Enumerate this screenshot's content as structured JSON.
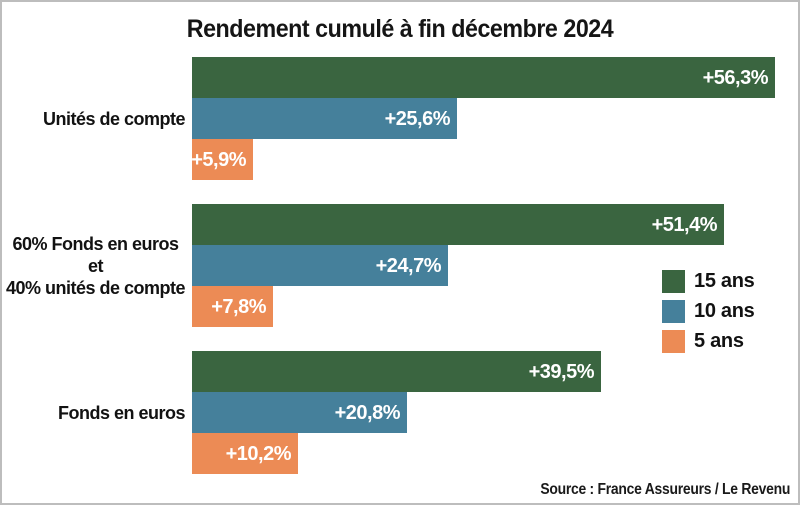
{
  "title": "Rendement cumulé à fin décembre 2024",
  "source": "Source : France Assureurs / Le Revenu",
  "colors": {
    "green_15_ans": "#3A6540",
    "blue_10_ans": "#45809B",
    "orange_5_ans": "#EC8B55",
    "frame_border": "#BDBDBD",
    "text": "#151515",
    "bar_label_text": "#FFFFFF"
  },
  "legend": {
    "items": [
      {
        "label": "15 ans",
        "color": "#3A6540"
      },
      {
        "label": "10 ans",
        "color": "#45809B"
      },
      {
        "label": "5 ans",
        "color": "#EC8B55"
      }
    ]
  },
  "chart_data": {
    "type": "bar",
    "orientation": "horizontal",
    "title": "Rendement cumulé à fin décembre 2024",
    "unit": "%",
    "grid": false,
    "axes_visible": false,
    "xlim": [
      0,
      60
    ],
    "legend_position": "middle-right",
    "categories": [
      "Unités de compte",
      "60% Fonds en euros et 40% unités de compte",
      "Fonds en euros"
    ],
    "category_label_lines": [
      [
        "Unités de compte"
      ],
      [
        "60% Fonds en euros",
        "et",
        "40% unités de compte"
      ],
      [
        "Fonds en euros"
      ]
    ],
    "series": [
      {
        "name": "15 ans",
        "color": "#3A6540",
        "values": [
          56.3,
          51.4,
          39.5
        ]
      },
      {
        "name": "10 ans",
        "color": "#45809B",
        "values": [
          25.6,
          24.7,
          20.8
        ]
      },
      {
        "name": "5 ans",
        "color": "#EC8B55",
        "values": [
          5.9,
          7.8,
          10.2
        ]
      }
    ],
    "data_labels": [
      [
        "+56,3%",
        "+25,6%",
        "+5,9%"
      ],
      [
        "+51,4%",
        "+24,7%",
        "+7,8%"
      ],
      [
        "+39,5%",
        "+20,8%",
        "+10,2%"
      ]
    ],
    "source": "Source : France Assureurs / Le Revenu"
  }
}
